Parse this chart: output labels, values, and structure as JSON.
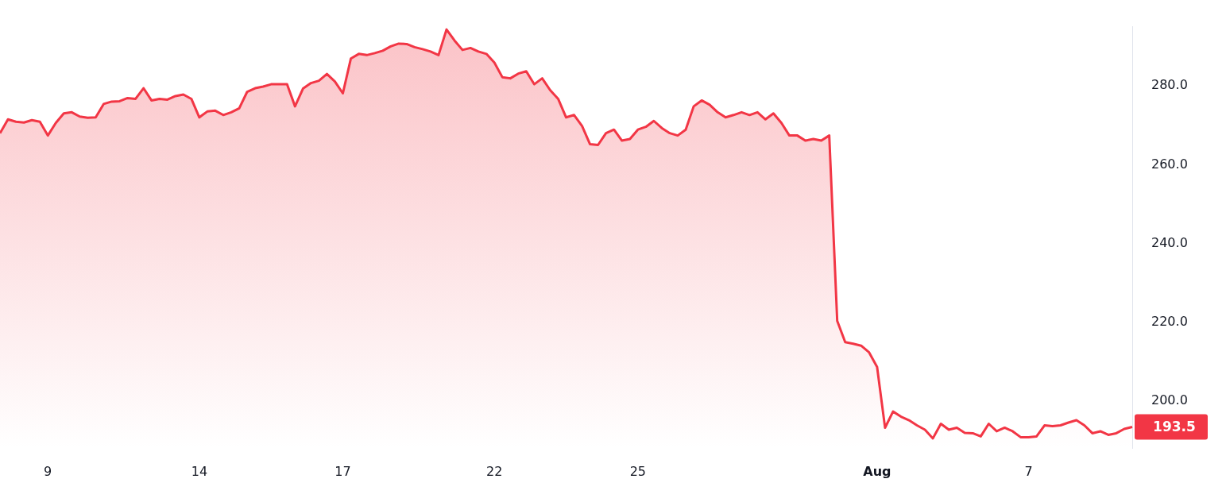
{
  "chart_data": {
    "type": "area",
    "categories": [
      null,
      null,
      null,
      null,
      null,
      null,
      "9",
      null,
      null,
      null,
      null,
      null,
      null,
      null,
      null,
      null,
      null,
      null,
      null,
      null,
      null,
      null,
      null,
      null,
      null,
      "14",
      null,
      null,
      null,
      null,
      null,
      null,
      null,
      null,
      null,
      null,
      null,
      null,
      null,
      null,
      null,
      null,
      null,
      "17",
      null,
      null,
      null,
      null,
      null,
      null,
      null,
      null,
      null,
      null,
      null,
      null,
      null,
      null,
      null,
      null,
      null,
      null,
      "22",
      null,
      null,
      null,
      null,
      null,
      null,
      null,
      null,
      null,
      null,
      null,
      null,
      null,
      null,
      null,
      null,
      null,
      "25",
      null,
      null,
      null,
      null,
      null,
      null,
      null,
      null,
      null,
      null,
      null,
      null,
      null,
      null,
      null,
      null,
      null,
      null,
      null,
      null,
      null,
      null,
      null,
      null,
      null,
      null,
      null,
      null,
      null,
      "Aug",
      null,
      null,
      null,
      null,
      null,
      null,
      null,
      null,
      null,
      null,
      null,
      null,
      null,
      null,
      null,
      null,
      null,
      null,
      "7",
      null,
      null,
      null,
      null,
      null,
      null,
      null,
      null,
      null,
      null,
      null,
      null,
      null
    ],
    "series": [
      {
        "color": "#f23645",
        "values": [
          268.0,
          271.5,
          270.9,
          270.7,
          271.3,
          270.9,
          267.4,
          270.6,
          273.0,
          273.3,
          272.2,
          271.9,
          272.0,
          275.4,
          276.0,
          276.1,
          276.9,
          276.7,
          279.4,
          276.3,
          276.7,
          276.5,
          277.4,
          277.8,
          276.7,
          272.0,
          273.5,
          273.7,
          272.6,
          273.3,
          274.3,
          278.5,
          279.4,
          279.8,
          280.4,
          280.4,
          280.4,
          274.8,
          279.3,
          280.7,
          281.3,
          283.0,
          281.1,
          278.1,
          286.9,
          288.1,
          287.8,
          288.3,
          288.9,
          290.0,
          290.7,
          290.6,
          289.8,
          289.3,
          288.7,
          287.8,
          294.3,
          291.5,
          289.1,
          289.6,
          288.7,
          288.1,
          285.9,
          282.2,
          281.9,
          283.1,
          283.7,
          280.4,
          281.9,
          278.9,
          276.7,
          272.0,
          272.6,
          269.8,
          265.2,
          265.0,
          268.0,
          268.9,
          266.1,
          266.5,
          268.9,
          269.6,
          271.1,
          269.3,
          268.0,
          267.4,
          268.9,
          274.8,
          276.3,
          275.2,
          273.3,
          272.0,
          272.6,
          273.3,
          272.6,
          273.3,
          271.5,
          273.0,
          270.6,
          267.4,
          267.4,
          266.1,
          266.5,
          266.1,
          267.4,
          220.4,
          215.0,
          214.6,
          214.1,
          212.4,
          208.7,
          193.3,
          197.4,
          196.1,
          195.2,
          193.9,
          192.8,
          190.6,
          194.3,
          192.8,
          193.3,
          192.0,
          191.9,
          191.1,
          194.3,
          192.4,
          193.3,
          192.4,
          190.9,
          190.9,
          191.1,
          193.9,
          193.7,
          193.9,
          194.6,
          195.2,
          193.9,
          191.9,
          192.4,
          191.5,
          191.9,
          193.0,
          193.5
        ]
      }
    ],
    "ylim": [
      188,
      295
    ],
    "yticks": [
      {
        "value": 200,
        "label": "200.0"
      },
      {
        "value": 220,
        "label": "220.0"
      },
      {
        "value": 240,
        "label": "240.0"
      },
      {
        "value": 260,
        "label": "260.0"
      },
      {
        "value": 280,
        "label": "280.0"
      }
    ],
    "grid": false,
    "legend": false,
    "marker": "none",
    "line_style": "solid",
    "annotations": [
      "193.5"
    ]
  }
}
